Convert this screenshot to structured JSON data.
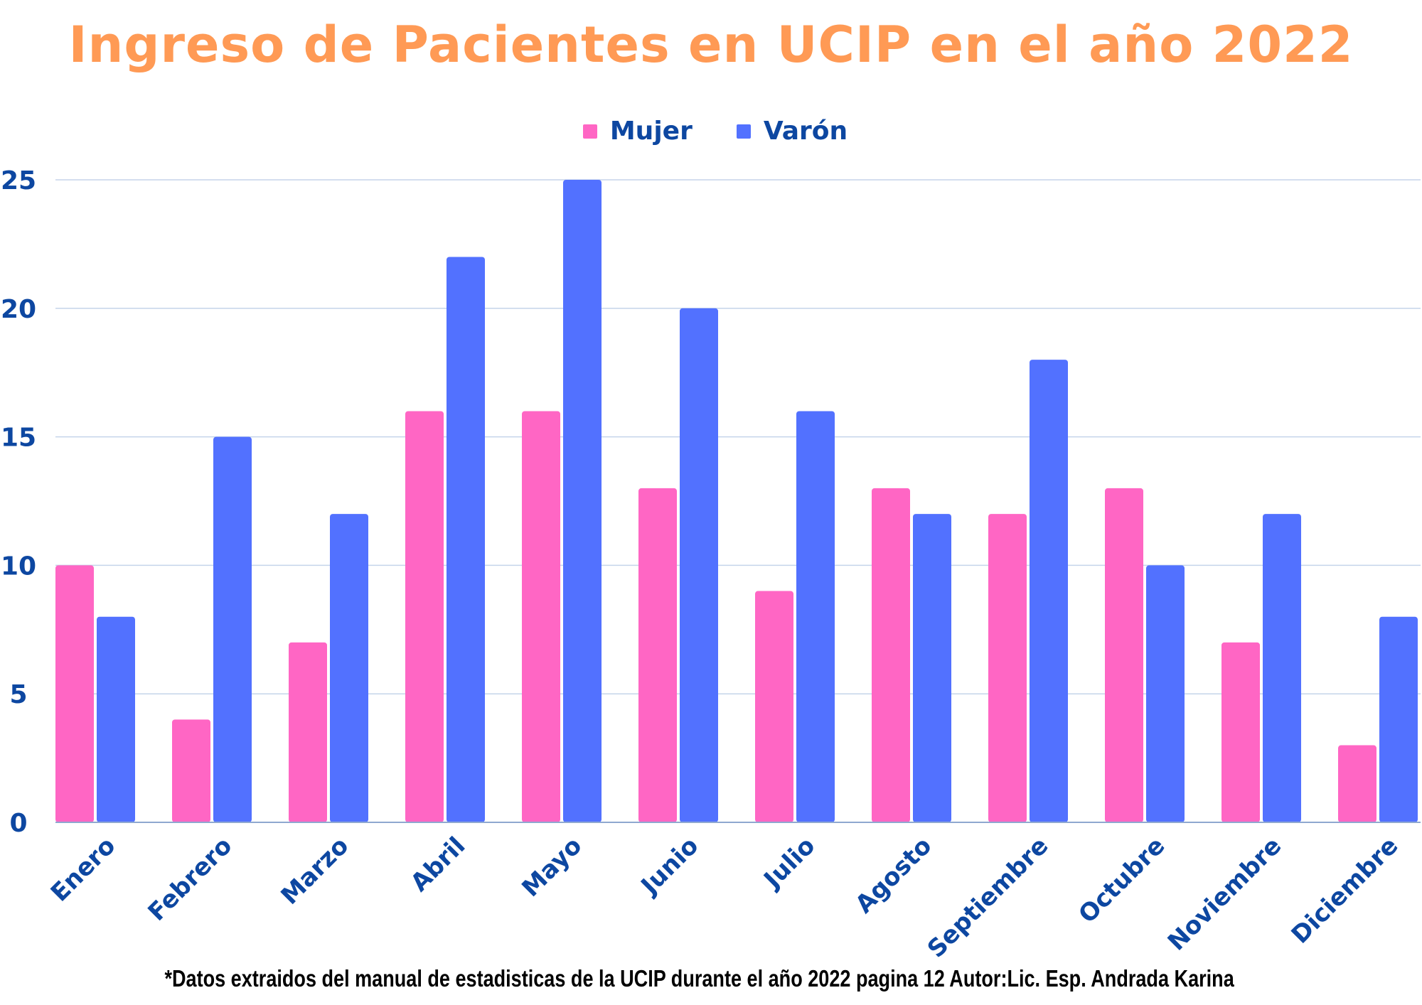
{
  "chart_data": {
    "type": "bar",
    "title": "Ingreso de Pacientes en UCIP en el año 2022",
    "categories": [
      "Enero",
      "Febrero",
      "Marzo",
      "Abril",
      "Mayo",
      "Junio",
      "Julio",
      "Agosto",
      "Septiembre",
      "Octubre",
      "Noviembre",
      "Diciembre"
    ],
    "series": [
      {
        "name": "Mujer",
        "color": "#ff66c4",
        "values": [
          10,
          4,
          7,
          16,
          16,
          13,
          9,
          13,
          12,
          13,
          7,
          3
        ]
      },
      {
        "name": "Varón",
        "color": "#5271ff",
        "values": [
          8,
          15,
          12,
          22,
          25,
          20,
          16,
          12,
          18,
          10,
          12,
          8
        ]
      }
    ],
    "xlabel": "",
    "ylabel": "",
    "ylim": [
      0,
      25
    ],
    "yticks": [
      0,
      5,
      10,
      15,
      20,
      25
    ],
    "grid": true,
    "legend_position": "top-center",
    "colors": {
      "title": "#ff9a55",
      "axis_text": "#0d47a1",
      "grid": "#c5d4ea"
    }
  },
  "footnote": "*Datos extraidos del manual de estadisticas de la UCIP durante el año 2022 pagina 12 Autor:Lic. Esp. Andrada Karina"
}
